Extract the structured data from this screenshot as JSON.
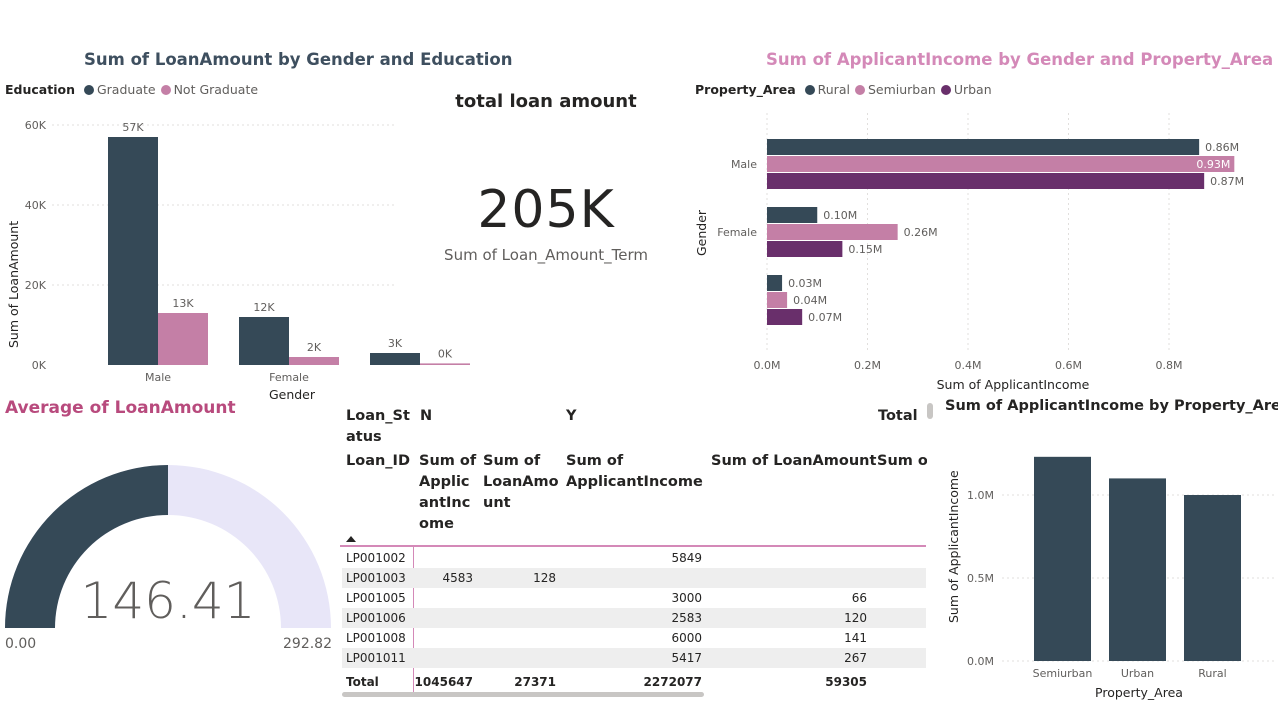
{
  "colors": {
    "dark": "#354957",
    "pink": "#c47fa6",
    "purple": "#692f6b",
    "lavender": "#e8e6f8",
    "title_dark": "#3e4f5f",
    "title_pink": "#d489b8",
    "title_magenta": "#b84a7d"
  },
  "loan_chart": {
    "title": "Sum of LoanAmount by Gender and Education",
    "legend_label": "Education",
    "legend_items": [
      "Graduate",
      "Not Graduate"
    ],
    "ylabel": "Sum of LoanAmount",
    "xlabel": "Gender",
    "y_ticks": [
      "60K",
      "40K",
      "20K",
      "0K"
    ],
    "categories": [
      "Male",
      "Female",
      ""
    ]
  },
  "income_chart": {
    "title": "Sum of ApplicantIncome by Gender and Property_Area",
    "legend_label": "Property_Area",
    "legend_items": [
      "Rural",
      "Semiurban",
      "Urban"
    ],
    "ylabel": "Gender",
    "xlabel": "Sum of ApplicantIncome",
    "x_ticks": [
      "0.0M",
      "0.2M",
      "0.4M",
      "0.6M",
      "0.8M"
    ],
    "categories": [
      "Male",
      "Female",
      ""
    ]
  },
  "kpi": {
    "title": "total loan amount",
    "value": "205K",
    "subtitle": "Sum of Loan_Amount_Term"
  },
  "gauge": {
    "title": "Average of LoanAmount",
    "value_text": "146.41",
    "min_text": "0.00",
    "max_text": "292.82",
    "fraction": 0.5
  },
  "matrix": {
    "row_header_1": "Loan_St atus",
    "row_header_2": "Loan_ID",
    "col_groups": [
      "N",
      "Y",
      "Total"
    ],
    "col_headers": [
      "Sum of Applic antInc ome",
      "Sum of LoanAmo unt",
      "Sum of ApplicantIncome",
      "Sum of LoanAmount",
      "Sum o"
    ],
    "rows": [
      {
        "id": "LP001002",
        "n_inc": "",
        "n_loan": "",
        "y_inc": "5849",
        "y_loan": ""
      },
      {
        "id": "LP001003",
        "n_inc": "4583",
        "n_loan": "128",
        "y_inc": "",
        "y_loan": ""
      },
      {
        "id": "LP001005",
        "n_inc": "",
        "n_loan": "",
        "y_inc": "3000",
        "y_loan": "66"
      },
      {
        "id": "LP001006",
        "n_inc": "",
        "n_loan": "",
        "y_inc": "2583",
        "y_loan": "120"
      },
      {
        "id": "LP001008",
        "n_inc": "",
        "n_loan": "",
        "y_inc": "6000",
        "y_loan": "141"
      },
      {
        "id": "LP001011",
        "n_inc": "",
        "n_loan": "",
        "y_inc": "5417",
        "y_loan": "267"
      }
    ],
    "total": {
      "label": "Total",
      "n_inc": "1045647",
      "n_loan": "27371",
      "y_inc": "2272077",
      "y_loan": "59305"
    }
  },
  "area_chart": {
    "title": "Sum of ApplicantIncome by Property_Area",
    "ylabel": "Sum of ApplicantIncome",
    "xlabel": "Property_Area",
    "y_ticks": [
      "1.0M",
      "0.5M",
      "0.0M"
    ]
  },
  "chart_data": [
    {
      "type": "bar",
      "title": "Sum of LoanAmount by Gender and Education",
      "xlabel": "Gender",
      "ylabel": "Sum of LoanAmount",
      "ylim": [
        0,
        60000
      ],
      "grid": true,
      "legend_placement": "top-left",
      "categories": [
        "Male",
        "Female",
        ""
      ],
      "series": [
        {
          "name": "Graduate",
          "values": [
            57000,
            12000,
            3000
          ],
          "labels": [
            "57K",
            "12K",
            "3K"
          ]
        },
        {
          "name": "Not Graduate",
          "values": [
            13000,
            2000,
            400
          ],
          "labels": [
            "13K",
            "2K",
            "0K"
          ]
        }
      ]
    },
    {
      "type": "bar",
      "orientation": "horizontal",
      "title": "Sum of ApplicantIncome by Gender and Property_Area",
      "xlabel": "Sum of ApplicantIncome",
      "ylabel": "Gender",
      "xlim": [
        0,
        0.95
      ],
      "grid": true,
      "legend_placement": "top-left",
      "categories": [
        "Male",
        "Female",
        ""
      ],
      "series": [
        {
          "name": "Rural",
          "values": [
            0.86,
            0.1,
            0.03
          ],
          "labels": [
            "0.86M",
            "0.10M",
            "0.03M"
          ]
        },
        {
          "name": "Semiurban",
          "values": [
            0.93,
            0.26,
            0.04
          ],
          "labels": [
            "0.93M",
            "0.26M",
            "0.04M"
          ]
        },
        {
          "name": "Urban",
          "values": [
            0.87,
            0.15,
            0.07
          ],
          "labels": [
            "0.87M",
            "0.15M",
            "0.07M"
          ]
        }
      ]
    },
    {
      "type": "bar",
      "title": "Sum of ApplicantIncome by Property_Area",
      "xlabel": "Property_Area",
      "ylabel": "Sum of ApplicantIncome",
      "ylim": [
        0,
        1.25
      ],
      "categories": [
        "Semiurban",
        "Urban",
        "Rural"
      ],
      "values": [
        1.23,
        1.1,
        1.0
      ]
    }
  ]
}
